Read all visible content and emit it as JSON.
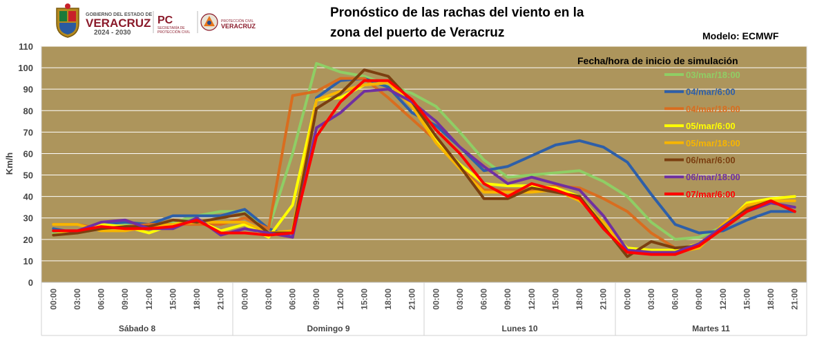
{
  "header": {
    "logo": {
      "line1": "GOBIERNO DEL ESTADO DE",
      "line2": "VERACRUZ",
      "line3": "2024 - 2030",
      "pc": "PC",
      "pc_sub1": "SECRETARÍA DE",
      "pc_sub2": "PROTECCIÓN CIVIL",
      "pc2_top": "PROTECCIÓN CIVIL",
      "pc2_bottom": "VERACRUZ"
    },
    "title_line1": "Pronóstico de las rachas del viento en la",
    "title_line2": "zona del puerto de Veracruz",
    "model": "Modelo: ECMWF"
  },
  "colors": {
    "plot_bg": "#ad955c",
    "grid": "#ffffff"
  },
  "chart_data": {
    "type": "line",
    "ylabel": "Km/h",
    "ylim": [
      0,
      110
    ],
    "yticks": [
      0,
      10,
      20,
      30,
      40,
      50,
      60,
      70,
      80,
      90,
      100,
      110
    ],
    "grid": true,
    "legend_title": "Fecha/hora de inicio de simulación",
    "legend_position": "top-right",
    "x": [
      "00:00",
      "03:00",
      "06:00",
      "09:00",
      "12:00",
      "15:00",
      "18:00",
      "21:00",
      "00:00",
      "03:00",
      "06:00",
      "09:00",
      "12:00",
      "15:00",
      "18:00",
      "21:00",
      "00:00",
      "03:00",
      "06:00",
      "09:00",
      "12:00",
      "15:00",
      "18:00",
      "21:00",
      "00:00",
      "03:00",
      "06:00",
      "09:00",
      "12:00",
      "15:00",
      "18:00",
      "21:00"
    ],
    "day_groups": [
      "Sábado 8",
      "Domingo 9",
      "Lunes 10",
      "Martes 11"
    ],
    "series": [
      {
        "name": "03/mar/18:00",
        "color": "#8fce65",
        "values": [
          23,
          24,
          27,
          27,
          26,
          28,
          31,
          33,
          33,
          25,
          60,
          102,
          98,
          96,
          92,
          88,
          82,
          70,
          57,
          49,
          50,
          51,
          52,
          47,
          40,
          28,
          20,
          21,
          26,
          35,
          38,
          38
        ]
      },
      {
        "name": "04/mar/6:00",
        "color": "#2e5fa8",
        "values": [
          25,
          23,
          27,
          28,
          27,
          31,
          31,
          31,
          34,
          25,
          21,
          86,
          94,
          95,
          91,
          79,
          73,
          63,
          52,
          54,
          59,
          64,
          66,
          63,
          56,
          41,
          27,
          23,
          24,
          29,
          33,
          33
        ]
      },
      {
        "name": "04/mar/18:00",
        "color": "#d96d1f",
        "values": [
          27,
          27,
          25,
          26,
          27,
          27,
          27,
          27,
          30,
          25,
          87,
          89,
          95,
          95,
          86,
          76,
          66,
          54,
          43,
          43,
          43,
          45,
          44,
          39,
          33,
          23,
          16,
          16,
          27,
          35,
          38,
          38
        ]
      },
      {
        "name": "05/mar/6:00",
        "color": "#ffff00",
        "values": [
          22,
          24,
          27,
          26,
          23,
          27,
          29,
          24,
          27,
          21,
          36,
          85,
          86,
          92,
          93,
          85,
          66,
          55,
          46,
          45,
          45,
          44,
          40,
          27,
          16,
          15,
          15,
          18,
          26,
          37,
          39,
          40
        ]
      },
      {
        "name": "05/mar/18:00",
        "color": "#f7b500",
        "values": [
          27,
          27,
          24,
          24,
          26,
          27,
          28,
          28,
          28,
          23,
          24,
          85,
          89,
          92,
          93,
          82,
          65,
          53,
          42,
          42,
          42,
          43,
          38,
          28,
          15,
          14,
          14,
          16,
          27,
          36,
          38,
          38
        ]
      },
      {
        "name": "06/mar/6:00",
        "color": "#7b3f10",
        "values": [
          22,
          23,
          25,
          26,
          26,
          29,
          28,
          30,
          32,
          23,
          23,
          81,
          88,
          99,
          96,
          84,
          68,
          54,
          39,
          39,
          44,
          42,
          40,
          26,
          12,
          19,
          16,
          17,
          26,
          34,
          38,
          33
        ]
      },
      {
        "name": "06/mar/18:00",
        "color": "#7030a0",
        "values": [
          24,
          24,
          28,
          29,
          25,
          25,
          30,
          22,
          25,
          23,
          21,
          72,
          79,
          89,
          90,
          84,
          75,
          63,
          54,
          46,
          49,
          46,
          43,
          31,
          15,
          14,
          14,
          18,
          26,
          33,
          37,
          35
        ]
      },
      {
        "name": "07/mar/6:00",
        "color": "#ff0000",
        "values": [
          24,
          24,
          26,
          25,
          25,
          26,
          29,
          23,
          23,
          22,
          23,
          68,
          84,
          94,
          94,
          85,
          71,
          60,
          46,
          40,
          46,
          43,
          39,
          25,
          14,
          13,
          13,
          17,
          25,
          33,
          38,
          33
        ]
      }
    ]
  }
}
